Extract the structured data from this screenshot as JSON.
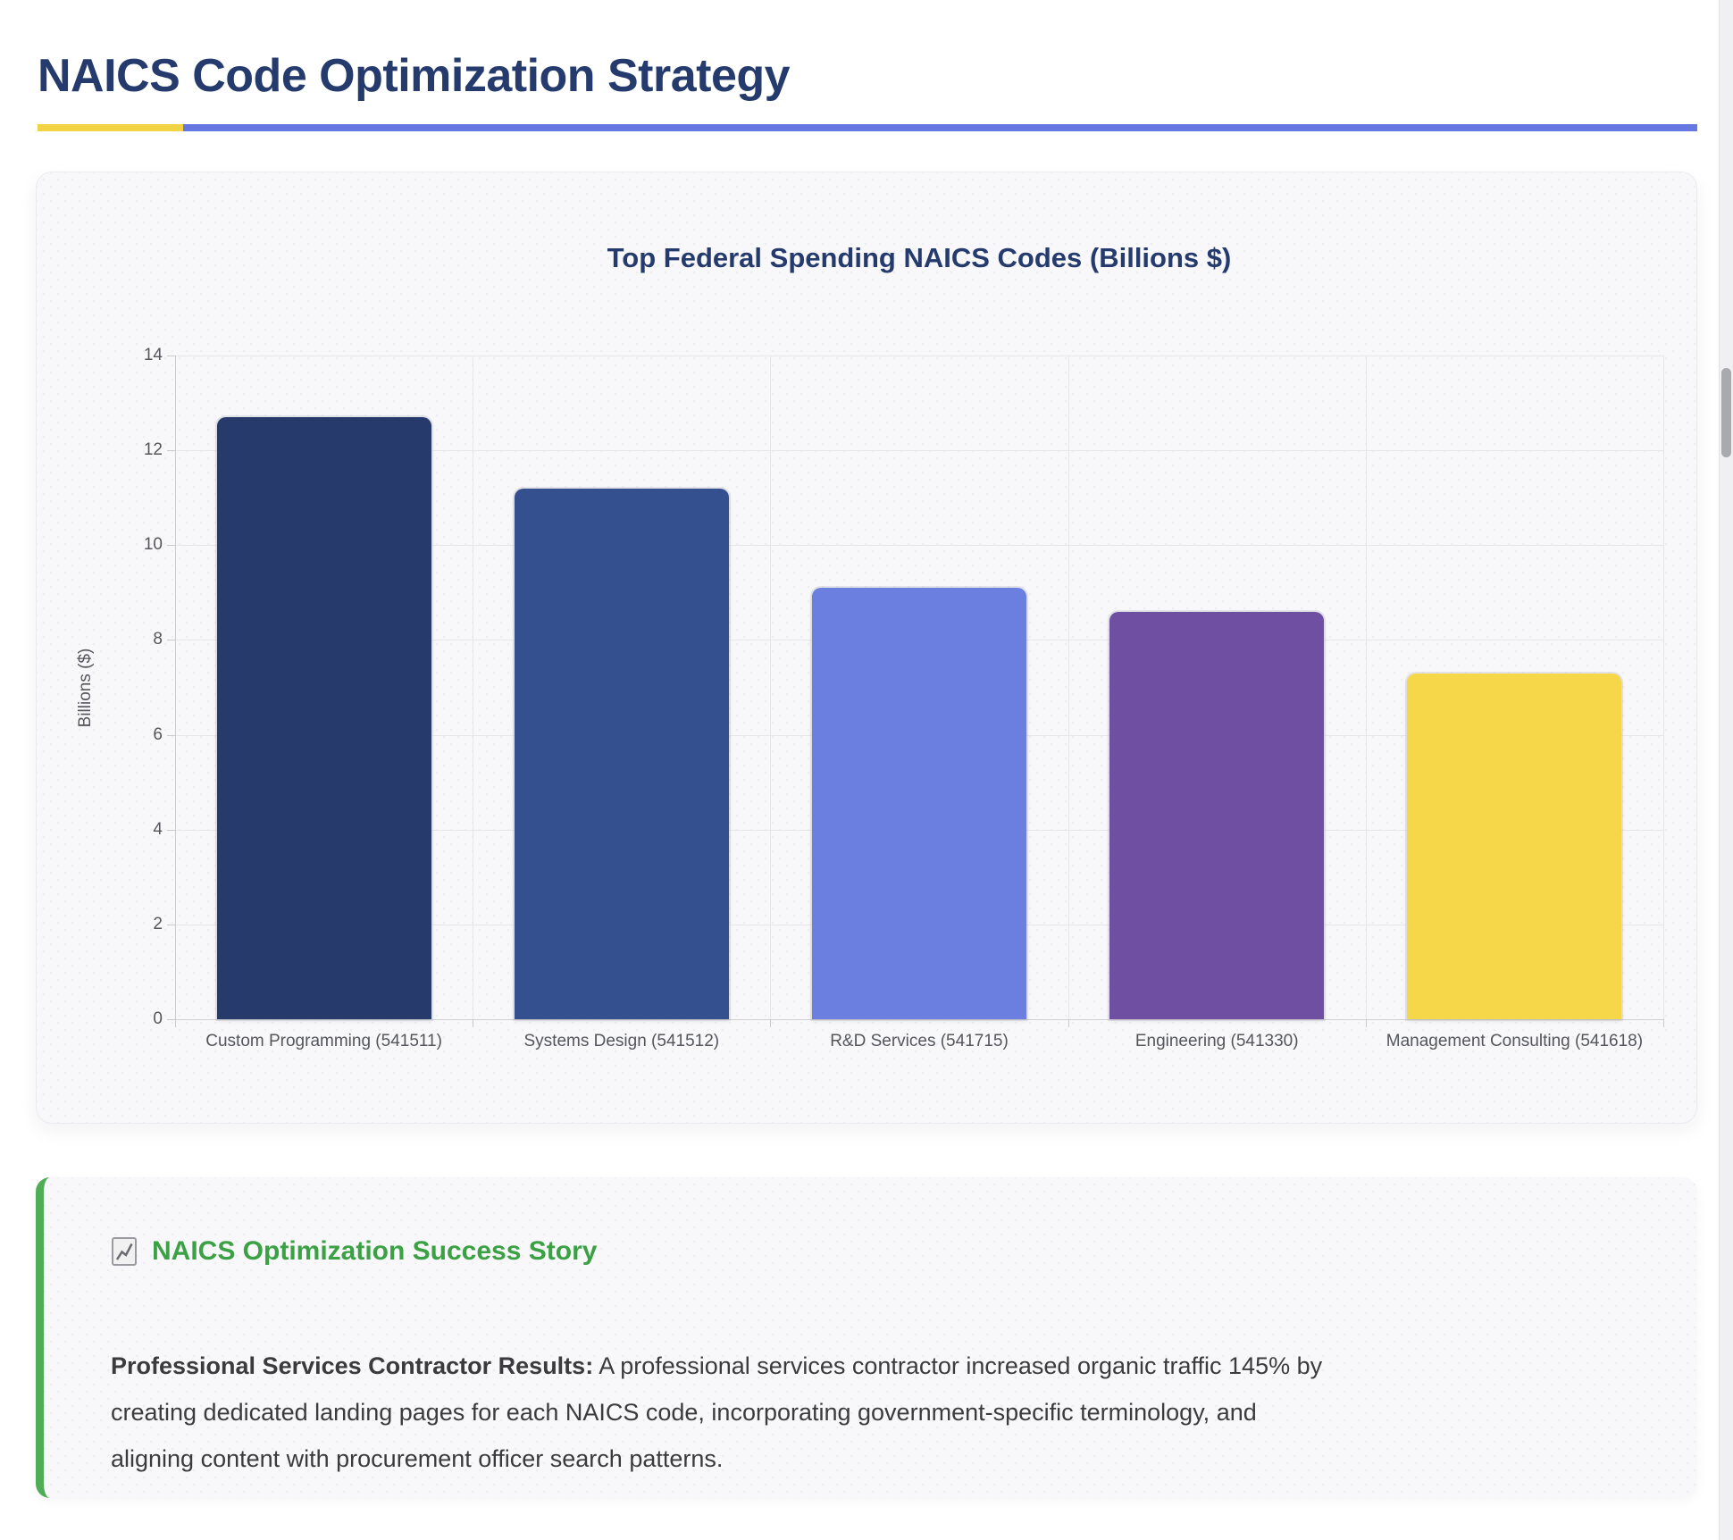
{
  "page": {
    "title": "NAICS Code Optimization Strategy",
    "title_color": "#253b6d",
    "accent_yellow": "#f2d343",
    "accent_blue": "#6577e0"
  },
  "chart_data": {
    "type": "bar",
    "title": "Top Federal Spending NAICS Codes (Billions $)",
    "categories": [
      "Custom Programming (541511)",
      "Systems Design (541512)",
      "R&D Services (541715)",
      "Engineering (541330)",
      "Management Consulting (541618)"
    ],
    "values": [
      12.7,
      11.2,
      9.1,
      8.6,
      7.3
    ],
    "bar_colors": [
      "#263b6b",
      "#35508f",
      "#6b7fe0",
      "#6f4fa2",
      "#f6d74a"
    ],
    "xlabel": "",
    "ylabel": "Billions ($)",
    "ylim": [
      0,
      14
    ],
    "yticks": [
      0,
      2,
      4,
      6,
      8,
      10,
      12,
      14
    ],
    "grid": true,
    "legend": false
  },
  "callout": {
    "icon": "chart-increasing-icon",
    "heading": "NAICS Optimization Success Story",
    "heading_color": "#3ba144",
    "border_color": "#4fae55",
    "lead": "Professional Services Contractor Results:",
    "body_rest": " A professional services contractor increased organic traffic 145% by creating dedicated landing pages for each NAICS code, incorporating government-specific terminology, and aligning content with procurement officer search patterns."
  }
}
